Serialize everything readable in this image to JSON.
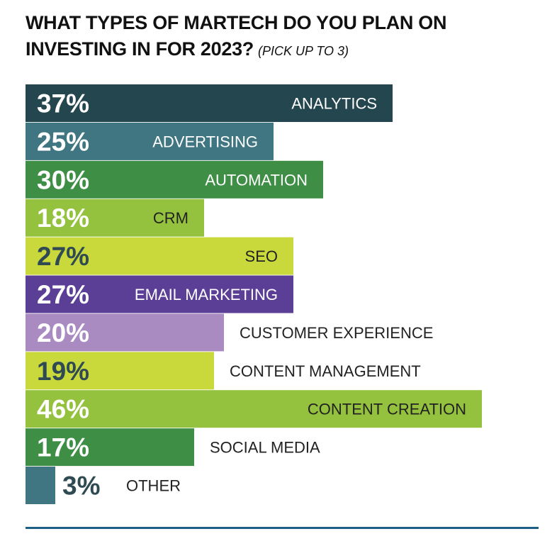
{
  "chart_data": {
    "type": "bar",
    "orientation": "horizontal",
    "title_line1": "WHAT TYPES OF MARTECH DO YOU PLAN ON",
    "title_line2": "INVESTING IN FOR 2023?",
    "title_note": "(PICK UP TO 3)",
    "value_suffix": "%",
    "xlim": [
      0,
      46
    ],
    "bars": [
      {
        "label": "ANALYTICS",
        "value": 37,
        "color": "#24464f",
        "value_color": "#ffffff",
        "label_color": "#ffffff",
        "label_inside": true
      },
      {
        "label": "ADVERTISING",
        "value": 25,
        "color": "#3f7681",
        "value_color": "#ffffff",
        "label_color": "#ffffff",
        "label_inside": true
      },
      {
        "label": "AUTOMATION",
        "value": 30,
        "color": "#3e8f45",
        "value_color": "#ffffff",
        "label_color": "#ffffff",
        "label_inside": true
      },
      {
        "label": "CRM",
        "value": 18,
        "color": "#94c23e",
        "value_color": "#ffffff",
        "label_color": "#222222",
        "label_inside": true
      },
      {
        "label": "SEO",
        "value": 27,
        "color": "#c9d83b",
        "value_color": "#2f4a52",
        "label_color": "#222222",
        "label_inside": true
      },
      {
        "label": "EMAIL MARKETING",
        "value": 27,
        "color": "#5b3f96",
        "value_color": "#ffffff",
        "label_color": "#ffffff",
        "label_inside": true
      },
      {
        "label": "CUSTOMER EXPERIENCE",
        "value": 20,
        "color": "#a98bc2",
        "value_color": "#ffffff",
        "label_color": "#222222",
        "label_inside": false
      },
      {
        "label": "CONTENT MANAGEMENT",
        "value": 19,
        "color": "#c9d83b",
        "value_color": "#2f4a52",
        "label_color": "#222222",
        "label_inside": false
      },
      {
        "label": "CONTENT CREATION",
        "value": 46,
        "color": "#94c23e",
        "value_color": "#ffffff",
        "label_color": "#222222",
        "label_inside": true
      },
      {
        "label": "SOCIAL MEDIA",
        "value": 17,
        "color": "#3e8f45",
        "value_color": "#ffffff",
        "label_color": "#222222",
        "label_inside": false
      },
      {
        "label": "OTHER",
        "value": 3,
        "color": "#3f7681",
        "value_color": "#2f4a52",
        "label_color": "#222222",
        "label_inside": false
      }
    ]
  },
  "colors": {
    "rule": "#1d5f86"
  }
}
